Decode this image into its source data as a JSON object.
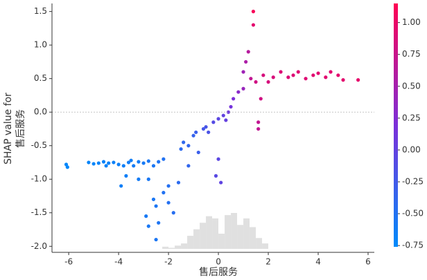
{
  "chart_data": {
    "type": "scatter",
    "xlabel": "售后服务",
    "ylabel": [
      "SHAP value for",
      "售后服务"
    ],
    "xlim": [
      -6.67,
      6.25
    ],
    "xticks": [
      -6,
      -4,
      -2,
      0,
      2,
      4,
      6
    ],
    "ylim": [
      -2.09,
      1.62
    ],
    "yticks": [
      {
        "value": -2.0,
        "label": "-2.0"
      },
      -1.5,
      {
        "value": -1.0,
        "label": "-1.0"
      },
      -0.5,
      {
        "value": 0.0,
        "label": "0.0"
      },
      0.5,
      {
        "value": 1.0,
        "label": "1.0"
      },
      1.5
    ],
    "zero_line": 0,
    "x": [
      -6.1,
      -6.05,
      -5.2,
      -5.0,
      -4.8,
      -4.6,
      -4.5,
      -4.4,
      -4.2,
      -4.0,
      -3.8,
      -3.6,
      -3.5,
      -3.4,
      -3.2,
      -3.0,
      -2.8,
      -2.6,
      -2.4,
      -2.2,
      -3.7,
      -3.9,
      -3.2,
      -2.8,
      -2.9,
      -2.8,
      -2.6,
      -2.5,
      -2.4,
      -2.5,
      -2.2,
      -2.0,
      -2.0,
      -1.8,
      -1.6,
      -1.5,
      -1.4,
      -1.2,
      -1.2,
      -1.0,
      -0.9,
      -0.8,
      -0.6,
      -0.5,
      -0.4,
      -0.2,
      0.0,
      0.0,
      -0.1,
      0.1,
      0.2,
      0.3,
      0.4,
      0.5,
      0.6,
      0.8,
      1.0,
      1.0,
      1.1,
      1.2,
      1.3,
      1.4,
      1.4,
      1.5,
      1.6,
      1.6,
      1.8,
      1.7,
      2.0,
      2.2,
      2.5,
      2.8,
      3.0,
      3.2,
      3.5,
      3.8,
      4.0,
      4.3,
      4.5,
      4.8,
      5.0,
      5.6
    ],
    "y": [
      -0.78,
      -0.82,
      -0.75,
      -0.77,
      -0.76,
      -0.74,
      -0.8,
      -0.76,
      -0.75,
      -0.78,
      -0.8,
      -0.75,
      -0.72,
      -0.8,
      -0.74,
      -0.76,
      -0.73,
      -0.8,
      -0.74,
      -0.7,
      -0.95,
      -1.1,
      -1.0,
      -1.0,
      -1.55,
      -1.7,
      -1.3,
      -1.4,
      -1.65,
      -1.9,
      -1.2,
      -1.1,
      -1.35,
      -1.5,
      -1.05,
      -0.55,
      -0.45,
      -0.5,
      -0.8,
      -0.35,
      -0.3,
      -0.6,
      -0.25,
      -0.22,
      -0.3,
      -0.15,
      -0.1,
      -0.7,
      -0.95,
      -1.05,
      -0.05,
      -0.12,
      0.0,
      0.08,
      0.2,
      0.3,
      0.35,
      0.6,
      0.75,
      0.9,
      0.5,
      1.3,
      1.5,
      0.45,
      -0.15,
      -0.25,
      0.55,
      0.2,
      0.45,
      0.52,
      0.6,
      0.52,
      0.55,
      0.6,
      0.5,
      0.55,
      0.58,
      0.52,
      0.6,
      0.55,
      0.48,
      0.48
    ],
    "c": [
      -0.72,
      -0.72,
      -0.7,
      -0.7,
      -0.68,
      -0.68,
      -0.68,
      -0.67,
      -0.66,
      -0.65,
      -0.64,
      -0.62,
      -0.62,
      -0.6,
      -0.6,
      -0.58,
      -0.56,
      -0.55,
      -0.53,
      -0.5,
      -0.64,
      -0.64,
      -0.6,
      -0.56,
      -0.57,
      -0.56,
      -0.55,
      -0.54,
      -0.53,
      -0.54,
      -0.5,
      -0.48,
      -0.48,
      -0.46,
      -0.43,
      -0.42,
      -0.4,
      -0.38,
      -0.38,
      -0.34,
      -0.3,
      -0.3,
      -0.22,
      -0.2,
      -0.18,
      -0.1,
      -0.05,
      -0.05,
      -0.08,
      -0.02,
      0.0,
      0.02,
      0.1,
      0.15,
      0.2,
      0.3,
      0.4,
      0.45,
      0.55,
      0.62,
      0.7,
      0.95,
      1.1,
      0.8,
      0.7,
      0.7,
      0.85,
      0.8,
      0.85,
      0.87,
      0.9,
      0.9,
      0.9,
      0.92,
      0.92,
      0.93,
      0.93,
      0.94,
      0.94,
      0.95,
      0.95,
      0.97
    ],
    "clim": [
      -0.76,
      1.15
    ],
    "colorbar_ticks": [
      {
        "value": -0.75,
        "label": "-0.75"
      },
      {
        "value": -0.5,
        "label": "-0.50"
      },
      {
        "value": -0.25,
        "label": "-0.25"
      },
      {
        "value": 0.0,
        "label": "0.00"
      },
      {
        "value": 0.25,
        "label": "0.25"
      },
      {
        "value": 0.5,
        "label": "0.50"
      },
      {
        "value": 0.75,
        "label": "0.75"
      },
      {
        "value": 1.0,
        "label": "1.00"
      }
    ],
    "colors": [
      "#008bfb",
      "#7b2fd9",
      "#ff0052"
    ],
    "histogram": {
      "bins": [
        -2.25,
        -2.0,
        -1.75,
        -1.5,
        -1.25,
        -1.0,
        -0.75,
        -0.5,
        -0.25,
        0.0,
        0.25,
        0.5,
        0.75,
        1.0,
        1.25,
        1.5,
        1.75,
        2.0
      ],
      "counts": [
        2,
        1,
        3,
        5,
        12,
        18,
        24,
        30,
        28,
        14,
        31,
        33,
        22,
        28,
        20,
        10,
        5
      ],
      "color": "#e0e0e0"
    }
  }
}
